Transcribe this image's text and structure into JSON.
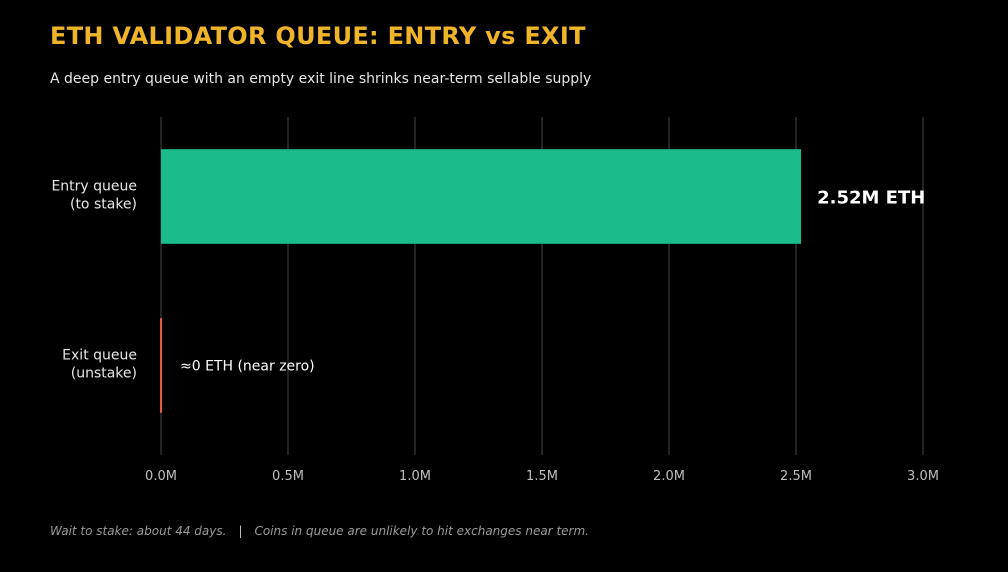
{
  "title": "ETH VALIDATOR QUEUE: ENTRY vs EXIT",
  "subtitle": "A deep entry queue with an empty exit line shrinks near-term sellable supply",
  "chart_data": {
    "type": "bar",
    "orientation": "horizontal",
    "categories": [
      {
        "line1": "Entry queue",
        "line2": "(to stake)"
      },
      {
        "line1": "Exit queue",
        "line2": "(unstake)"
      }
    ],
    "values": [
      2.52,
      0
    ],
    "value_unit": "M ETH",
    "data_labels": [
      "2.52M ETH",
      "≈0 ETH (near zero)"
    ],
    "xlim": [
      0,
      3.0
    ],
    "xticks": [
      0,
      0.5,
      1.0,
      1.5,
      2.0,
      2.5,
      3.0
    ],
    "xtick_labels": [
      "0.0M",
      "0.5M",
      "1.0M",
      "1.5M",
      "2.0M",
      "2.5M",
      "3.0M"
    ],
    "grid": true,
    "colors": [
      "#1abc8c",
      "#e05a3c"
    ]
  },
  "footnote": {
    "left": "Wait to stake: about 44 days.",
    "separator": "|",
    "right": "Coins in queue are unlikely to hit exchanges near term."
  }
}
